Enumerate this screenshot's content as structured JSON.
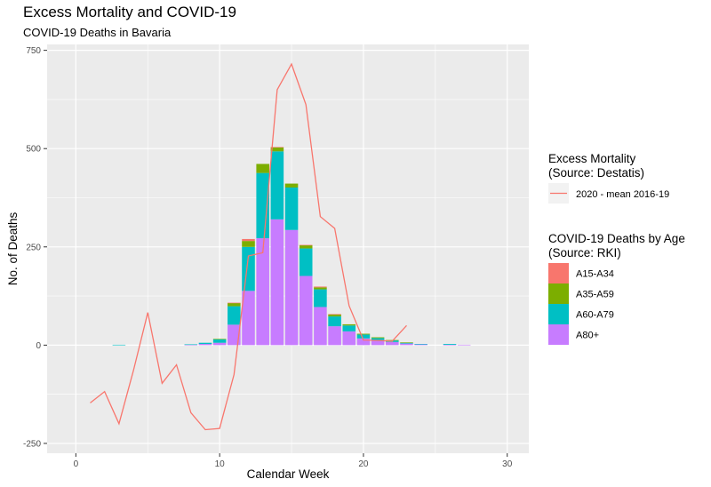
{
  "chart_data": {
    "type": "bar",
    "title": "Excess Mortality and COVID-19",
    "subtitle": "COVID-19 Deaths in Bavaria",
    "xlabel": "Calendar Week",
    "ylabel": "No. of Deaths",
    "xlim": [
      -2,
      31.5
    ],
    "ylim": [
      -275,
      765
    ],
    "x_ticks": [
      0,
      10,
      20,
      30
    ],
    "x_tick_labels": [
      "0",
      "10",
      "20",
      "30"
    ],
    "y_ticks": [
      -250,
      0,
      250,
      500,
      750
    ],
    "y_tick_labels": [
      "-250",
      "0",
      "250",
      "500",
      "750"
    ],
    "grid": true,
    "legend_position": "right",
    "bar_legend_title": [
      "COVID-19 Deaths by Age",
      "(Source: RKI)"
    ],
    "line_legend_title": [
      "Excess Mortality",
      "(Source: Destatis)"
    ],
    "stacked": true,
    "x": [
      3,
      8,
      9,
      10,
      11,
      12,
      13,
      14,
      15,
      16,
      17,
      18,
      19,
      20,
      21,
      22,
      23,
      24,
      26,
      27
    ],
    "series": [
      {
        "name": "A80+",
        "color": "#c77cff",
        "values": [
          0,
          1,
          3,
          6,
          52,
          138,
          272,
          320,
          293,
          176,
          97,
          48,
          35,
          17,
          13,
          8,
          4,
          2,
          1,
          1
        ]
      },
      {
        "name": "A60-A79",
        "color": "#00bfc4",
        "values": [
          1,
          1,
          3,
          9,
          47,
          112,
          166,
          173,
          108,
          70,
          45,
          25,
          15,
          10,
          5,
          4,
          2,
          1,
          2,
          0
        ]
      },
      {
        "name": "A35-A59",
        "color": "#7cae00",
        "values": [
          0,
          0,
          0,
          1,
          8,
          15,
          23,
          10,
          10,
          8,
          5,
          5,
          3,
          2,
          2,
          1,
          1,
          0,
          0,
          0
        ]
      },
      {
        "name": "A15-A34",
        "color": "#f8766d",
        "values": [
          0,
          0,
          0,
          0,
          1,
          5,
          0,
          1,
          0,
          1,
          2,
          1,
          0,
          0,
          0,
          0,
          0,
          0,
          0,
          0
        ]
      }
    ],
    "line": {
      "name": "2020 - mean 2016-19",
      "color": "#f8766d",
      "x": [
        1,
        2,
        3,
        4,
        5,
        6,
        7,
        8,
        9,
        10,
        11,
        12,
        13,
        14,
        15,
        16,
        17,
        18,
        19,
        20,
        21,
        22,
        23
      ],
      "y": [
        -147,
        -118,
        -200,
        -65,
        83,
        -97,
        -50,
        -172,
        -215,
        -212,
        -75,
        227,
        235,
        650,
        715,
        612,
        327,
        297,
        100,
        13,
        12,
        10,
        50
      ]
    }
  }
}
